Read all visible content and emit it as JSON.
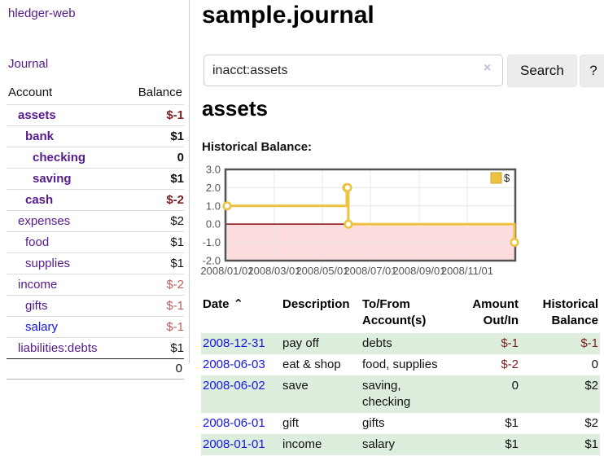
{
  "sidebar": {
    "app_title": "hledger-web",
    "journal_link": "Journal",
    "accounts": {
      "header": {
        "account": "Account",
        "balance": "Balance"
      },
      "rows": [
        {
          "name": "assets",
          "balance": "$-1",
          "depth": 1,
          "bold": true,
          "neg": "strong"
        },
        {
          "name": "bank",
          "balance": "$1",
          "depth": 2,
          "bold": true
        },
        {
          "name": "checking",
          "balance": "0",
          "depth": 3,
          "bold": true
        },
        {
          "name": "saving",
          "balance": "$1",
          "depth": 3,
          "bold": true
        },
        {
          "name": "cash",
          "balance": "$-2",
          "depth": 2,
          "bold": true,
          "neg": "strong"
        },
        {
          "name": "expenses",
          "balance": "$2",
          "depth": 1
        },
        {
          "name": "food",
          "balance": "$1",
          "depth": 2
        },
        {
          "name": "supplies",
          "balance": "$1",
          "depth": 2
        },
        {
          "name": "income",
          "balance": "$-2",
          "depth": 1,
          "neg": "soft"
        },
        {
          "name": "gifts",
          "balance": "$-1",
          "depth": 2,
          "neg": "soft"
        },
        {
          "name": "salary",
          "balance": "$-1",
          "depth": 2,
          "neg": "soft",
          "link": "blue"
        },
        {
          "name": "liabilities:debts",
          "balance": "$1",
          "depth": 1
        }
      ],
      "total": "0"
    }
  },
  "main": {
    "title": "sample.journal",
    "search": {
      "value": "inacct:assets",
      "clear_icon": "×",
      "search_button": "Search",
      "help_button": "?"
    },
    "account_heading": "assets",
    "chart_title": "Historical Balance:"
  },
  "chart_data": {
    "type": "line",
    "title": "Historical Balance",
    "step": true,
    "series": [
      {
        "name": "$",
        "color": "#edc240",
        "points": [
          {
            "date": "2008-01-01",
            "value": 1
          },
          {
            "date": "2008-06-01",
            "value": 2
          },
          {
            "date": "2008-06-02",
            "value": 2
          },
          {
            "date": "2008-06-03",
            "value": 0
          },
          {
            "date": "2008-12-31",
            "value": -1
          }
        ]
      }
    ],
    "x_ticks": [
      "2008/01/01",
      "2008/03/01",
      "2008/05/01",
      "2008/07/01",
      "2008/09/01",
      "2008/11/01"
    ],
    "y_ticks": [
      "3.0",
      "2.0",
      "1.0",
      "0.0",
      "-1.0",
      "-2.0"
    ],
    "ylim": [
      -2,
      3
    ],
    "xlim_days": [
      -2,
      366
    ],
    "x_epoch": "2008-01-01",
    "legend": {
      "label": "$",
      "swatch_color": "#edc240",
      "position": "top-right"
    },
    "grid": true,
    "grid_color": "#e8e8e8",
    "border_color": "#545454",
    "zero_line_color": "#8b1a1a",
    "negative_region_fill": "#fcdcdc",
    "tick_label_color": "#545454"
  },
  "register": {
    "columns": [
      {
        "id": "date",
        "lines": [
          "Date"
        ],
        "sortable": true,
        "sort_icon": "⌃"
      },
      {
        "id": "description",
        "lines": [
          "Description"
        ]
      },
      {
        "id": "accounts",
        "lines": [
          "To/From",
          "Account(s)"
        ]
      },
      {
        "id": "amount",
        "lines": [
          "Amount",
          "Out/In"
        ],
        "align": "right"
      },
      {
        "id": "balance",
        "lines": [
          "Historical",
          "Balance"
        ],
        "align": "right"
      }
    ],
    "rows": [
      {
        "date": "2008-12-31",
        "description": "pay off",
        "accounts": [
          "debts"
        ],
        "amount": "$-1",
        "amount_negative": true,
        "balance": "$-1",
        "balance_negative": true
      },
      {
        "date": "2008-06-03",
        "description": "eat & shop",
        "accounts": [
          "food, supplies"
        ],
        "amount": "$-2",
        "amount_negative": true,
        "balance": "0",
        "balance_negative": false
      },
      {
        "date": "2008-06-02",
        "description": "save",
        "accounts": [
          "saving,",
          "checking"
        ],
        "amount": "0",
        "amount_negative": false,
        "balance": "$2",
        "balance_negative": false
      },
      {
        "date": "2008-06-01",
        "description": "gift",
        "accounts": [
          "gifts"
        ],
        "amount": "$1",
        "amount_negative": false,
        "balance": "$2",
        "balance_negative": false
      },
      {
        "date": "2008-01-01",
        "description": "income",
        "accounts": [
          "salary"
        ],
        "amount": "$1",
        "amount_negative": false,
        "balance": "$1",
        "balance_negative": false
      }
    ]
  },
  "colors": {
    "link_purple": "#551a8b",
    "link_blue": "#1515e6",
    "negative_strong": "#7c2121",
    "negative_soft": "#bb5f5f",
    "row_green": "#ddeedd"
  }
}
